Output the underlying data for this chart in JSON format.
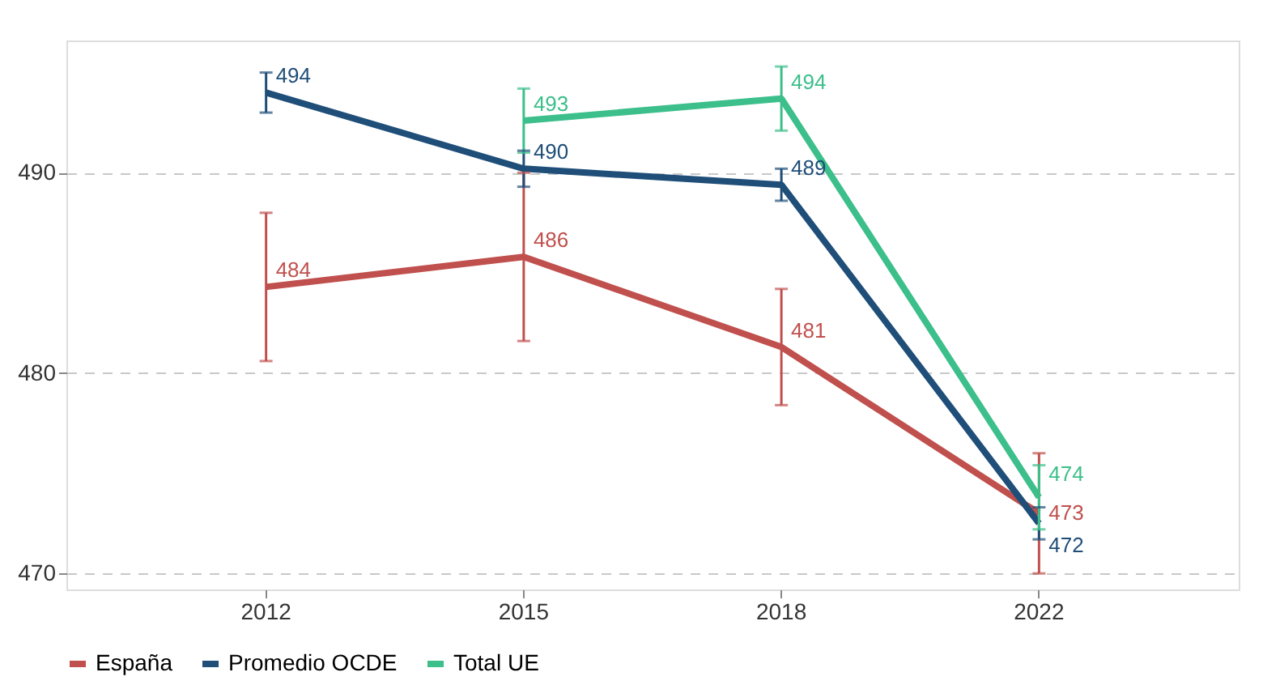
{
  "chart_data": {
    "type": "line",
    "categories": [
      "2012",
      "2015",
      "2018",
      "2022"
    ],
    "series": [
      {
        "name": "España",
        "color": "#c0504d",
        "values": [
          484.3,
          485.8,
          481.3,
          473.0
        ],
        "errors": [
          3.7,
          4.2,
          2.9,
          3.0
        ],
        "value_labels": [
          "484",
          "486",
          "481",
          "473"
        ]
      },
      {
        "name": "Promedio OCDE",
        "color": "#1f4e79",
        "values": [
          494.0,
          490.2,
          489.4,
          472.5
        ],
        "errors": [
          1.0,
          0.9,
          0.8,
          0.8
        ],
        "value_labels": [
          "494",
          "490",
          "489",
          "472"
        ]
      },
      {
        "name": "Total UE",
        "color": "#3cbf8a",
        "values": [
          null,
          492.6,
          493.7,
          473.8
        ],
        "errors": [
          null,
          1.6,
          1.6,
          1.6
        ],
        "value_labels": [
          null,
          "493",
          "494",
          "474"
        ]
      }
    ],
    "ylim": [
      469.2,
      496.6
    ],
    "yticks": [
      470,
      480,
      490
    ],
    "grid": "y",
    "legend": "bottom",
    "marker": "none",
    "line_style": "solid"
  }
}
